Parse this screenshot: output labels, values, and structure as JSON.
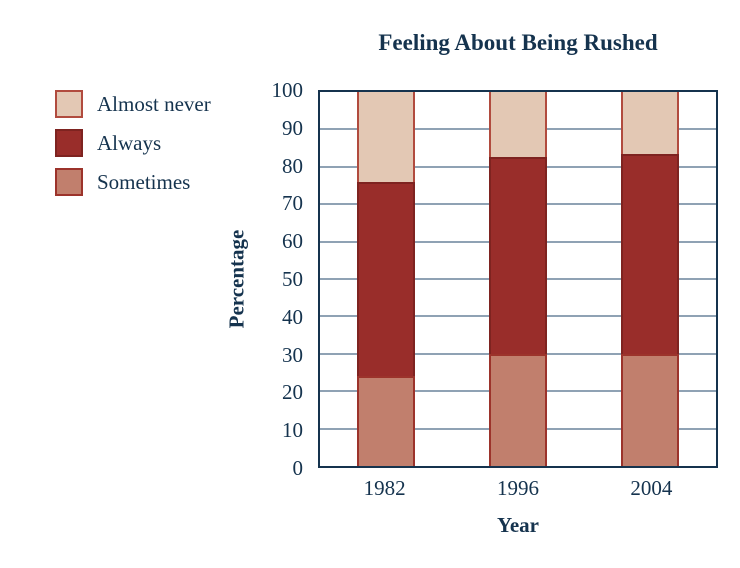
{
  "title": "Feeling About Being Rushed",
  "colors": {
    "text_navy": "#15334e",
    "axis_border": "#15334e",
    "gridline": "#8fa2b4",
    "background": "#ffffff",
    "almost_never_fill": "#e3c8b4",
    "always_fill": "#992d2a",
    "sometimes_fill": "#c17f6d"
  },
  "legend": {
    "items": [
      {
        "label": "Almost never",
        "series": "Almost never"
      },
      {
        "label": "Always",
        "series": "Always"
      },
      {
        "label": "Sometimes",
        "series": "Sometimes"
      }
    ]
  },
  "chart_data": {
    "type": "bar",
    "stacked": true,
    "title": "Feeling About Being Rushed",
    "xlabel": "Year",
    "ylabel": "Percentage",
    "categories": [
      "1982",
      "1996",
      "2004"
    ],
    "series": [
      {
        "name": "Sometimes",
        "values": [
          24,
          30,
          30
        ],
        "color": "#c17f6d",
        "border": "#9c332b"
      },
      {
        "name": "Always",
        "values": [
          52,
          52.5,
          53.5
        ],
        "color": "#992d2a",
        "border": "#7e2320"
      },
      {
        "name": "Almost never",
        "values": [
          24,
          17.5,
          16.5
        ],
        "color": "#e3c8b4",
        "border": "#b14b3e"
      }
    ],
    "ylim": [
      0,
      100
    ],
    "yticks": [
      0,
      10,
      20,
      30,
      40,
      50,
      60,
      70,
      80,
      90,
      100
    ],
    "grid": true,
    "legend_position": "outside-upper-left",
    "bar_centers_pct": [
      16.667,
      50,
      83.333
    ]
  }
}
